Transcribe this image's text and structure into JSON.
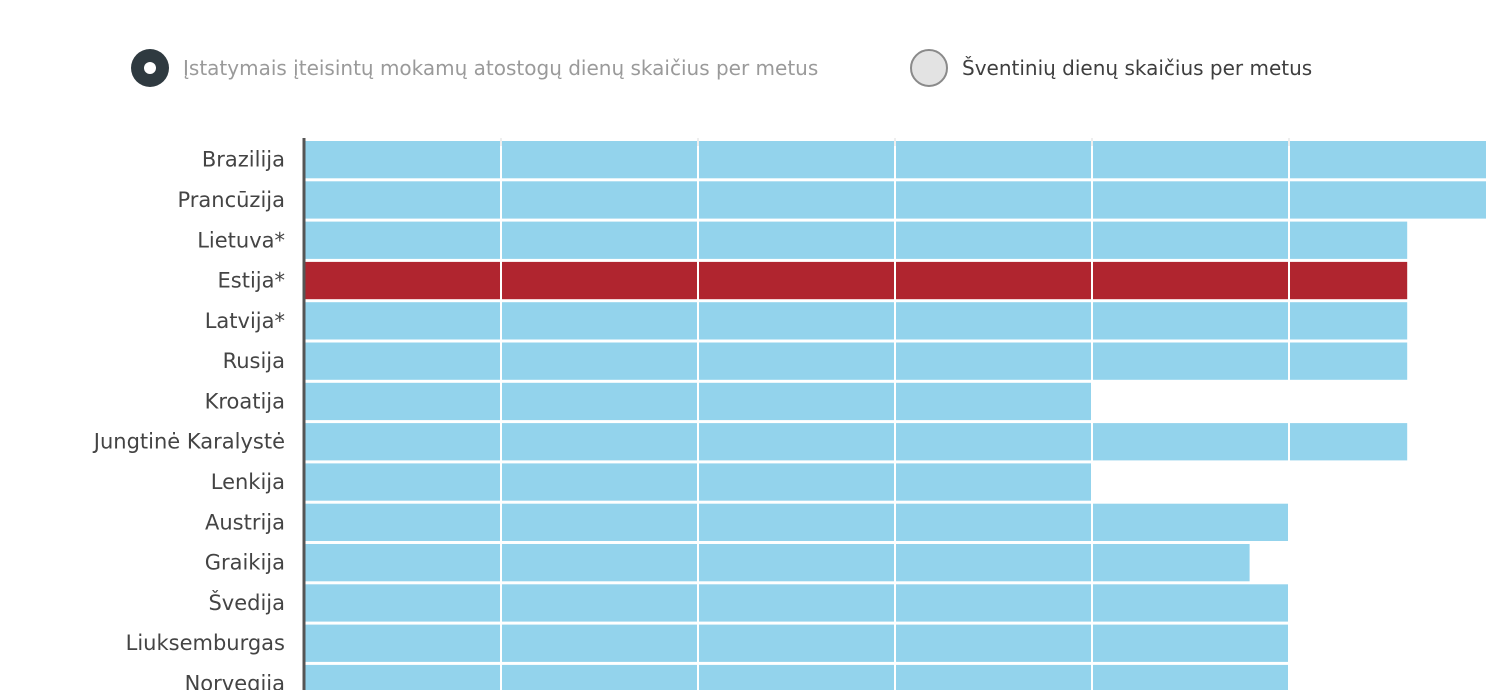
{
  "legend": {
    "items": [
      {
        "label": "Įstatymais įteisintų mokamų atostogų dienų skaičius per metus",
        "state": "active",
        "color": "#2f3a40"
      },
      {
        "label": "Šventinių dienų skaičius per metus",
        "state": "inactive",
        "color": "#e3e3e3"
      }
    ]
  },
  "colors": {
    "bar": "#93d3ec",
    "highlight": "#b0252f",
    "grid": "#ffffff",
    "axis": "#555555"
  },
  "chart_data": {
    "type": "bar",
    "orientation": "horizontal",
    "categories": [
      "Brazilija",
      "Prancūzija",
      "Lietuva*",
      "Estija*",
      "Latvija*",
      "Rusija",
      "Kroatija",
      "Jungtinė Karalystė",
      "Lenkija",
      "Austrija",
      "Graikija",
      "Švedija",
      "Liuksemburgas",
      "Norvegija"
    ],
    "series": [
      {
        "values": [
          30,
          30,
          28,
          28,
          28,
          28,
          20,
          28,
          20,
          25,
          24,
          25,
          25,
          25
        ]
      }
    ],
    "highlight_category": "Estija*",
    "xlim": [
      0,
      30
    ],
    "grid": true,
    "legend_position": "top"
  }
}
